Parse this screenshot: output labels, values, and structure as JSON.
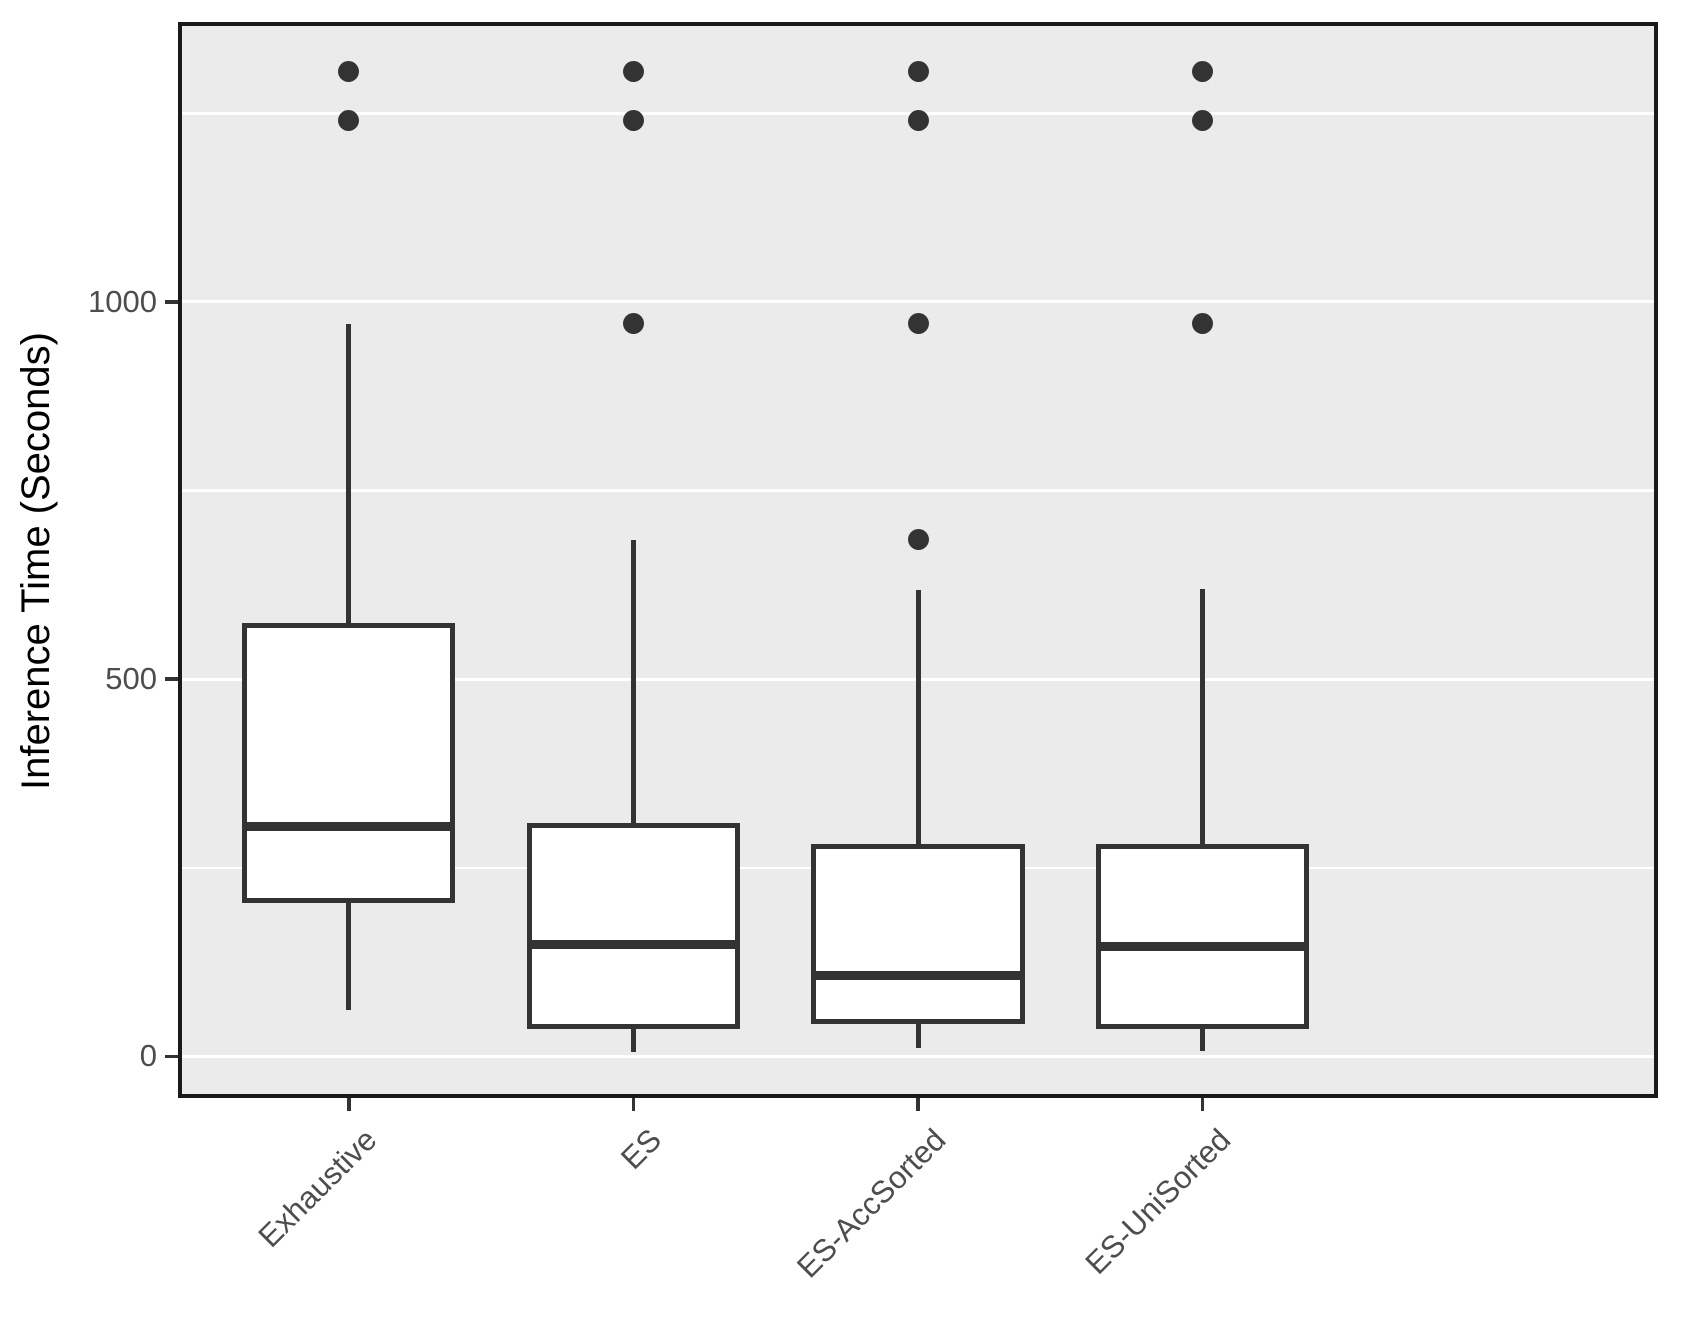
{
  "chart_data": {
    "type": "boxplot",
    "title": "",
    "xlabel": "",
    "ylabel": "Inference Time (Seconds)",
    "categories": [
      "Exhaustive",
      "ES",
      "ES-AccSorted",
      "ES-UniSorted"
    ],
    "y_ticks": [
      0,
      500,
      1000
    ],
    "y_tick_labels": [
      "0",
      "500",
      "1000"
    ],
    "minor_gridlines": [
      250,
      750,
      1250
    ],
    "ylim": [
      -55,
      1371
    ],
    "grid": "on",
    "legend": "none",
    "series": [
      {
        "name": "Exhaustive",
        "whisker_low": 62,
        "q1": 203,
        "median": 305,
        "q3": 574,
        "whisker_high": 971,
        "outliers": [
          1241,
          1305
        ]
      },
      {
        "name": "ES",
        "whisker_low": 6,
        "q1": 37,
        "median": 148,
        "q3": 310,
        "whisker_high": 685,
        "outliers": [
          972,
          1241,
          1305
        ]
      },
      {
        "name": "ES-AccSorted",
        "whisker_low": 11,
        "q1": 43,
        "median": 107,
        "q3": 282,
        "whisker_high": 618,
        "outliers": [
          685,
          972,
          1241,
          1305
        ]
      },
      {
        "name": "ES-UniSorted",
        "whisker_low": 7,
        "q1": 36,
        "median": 146,
        "q3": 282,
        "whisker_high": 620,
        "outliers": [
          972,
          1241,
          1305
        ]
      }
    ]
  },
  "colors": {
    "panel_bg": "#EBEBEB",
    "gridline": "#FFFFFF",
    "box_fill": "#FFFFFF",
    "box_stroke": "#333333",
    "outlier": "#333333",
    "panel_border": "#1A1A1A",
    "tick_label": "#4D4D4D",
    "axis_title": "#000000"
  }
}
